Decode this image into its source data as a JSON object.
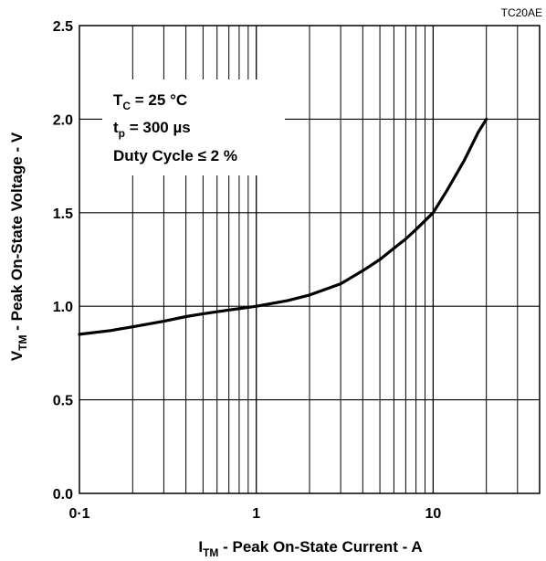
{
  "chart_data": {
    "type": "line",
    "figure_code": "TC20AE",
    "x_scale": "log",
    "xlim": [
      0.1,
      40
    ],
    "ylim": [
      0,
      2.5
    ],
    "grid": true,
    "x_ticks": [
      {
        "value": 0.1,
        "label": "0·1"
      },
      {
        "value": 1,
        "label": "1"
      },
      {
        "value": 10,
        "label": "10"
      }
    ],
    "y_ticks": [
      {
        "value": 0.0,
        "label": "0.0"
      },
      {
        "value": 0.5,
        "label": "0.5"
      },
      {
        "value": 1.0,
        "label": "1.0"
      },
      {
        "value": 1.5,
        "label": "1.5"
      },
      {
        "value": 2.0,
        "label": "2.0"
      },
      {
        "value": 2.5,
        "label": "2.5"
      }
    ],
    "xlabel": {
      "main": "I",
      "sub": "TM",
      "rest": " - Peak On-State Current - A"
    },
    "ylabel": {
      "main": "V",
      "sub": "TM",
      "rest": " - Peak On-State Voltage - V"
    },
    "annotations": {
      "line1": {
        "main": "T",
        "sub": "C",
        "rest": " = 25 °C"
      },
      "line2": {
        "main": "t",
        "sub": "p",
        "rest": " = 300 µs"
      },
      "line3": {
        "main": "Duty Cycle ≤ 2 %"
      }
    },
    "series": [
      {
        "x": [
          0.1,
          0.15,
          0.2,
          0.3,
          0.4,
          0.5,
          0.7,
          1.0,
          1.5,
          2.0,
          3.0,
          4.0,
          5.0,
          6.0,
          7.0,
          8.0,
          10.0,
          12.0,
          15.0,
          18.0,
          20.0
        ],
        "y": [
          0.85,
          0.87,
          0.89,
          0.92,
          0.945,
          0.96,
          0.98,
          1.0,
          1.03,
          1.06,
          1.12,
          1.19,
          1.25,
          1.31,
          1.36,
          1.41,
          1.5,
          1.62,
          1.78,
          1.93,
          2.0
        ]
      }
    ]
  }
}
